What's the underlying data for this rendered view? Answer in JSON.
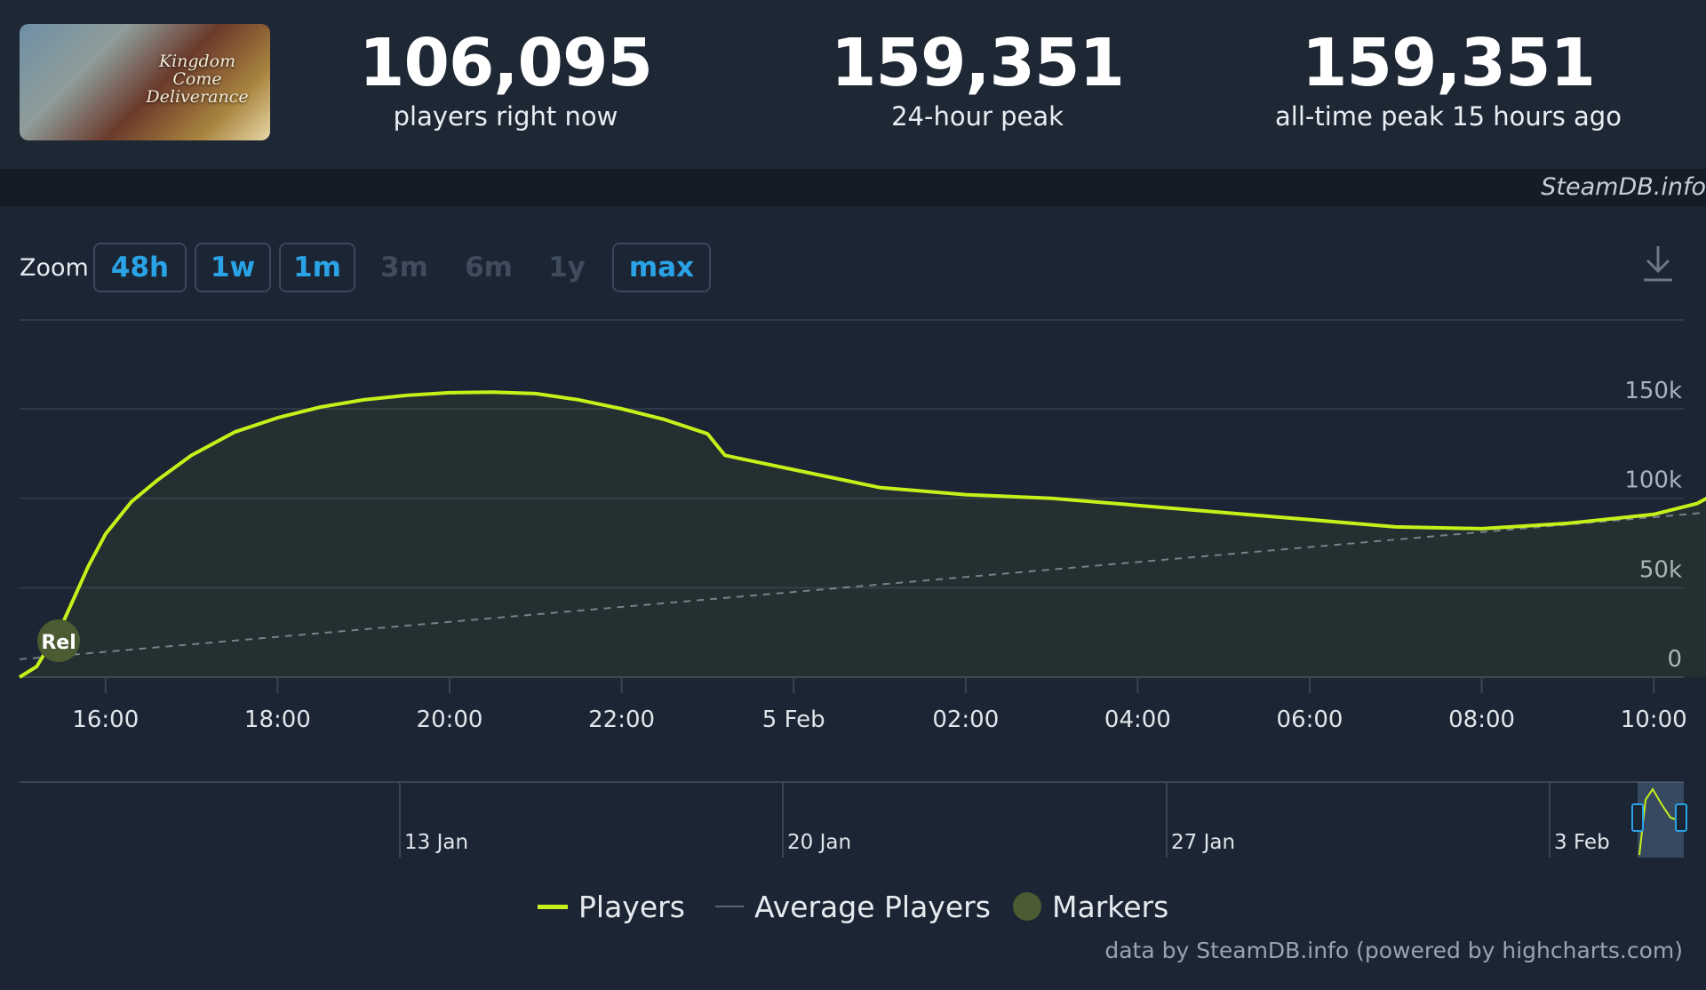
{
  "game": {
    "logo_line1": "Kingdom Come",
    "logo_line2": "Deliverance"
  },
  "stats": {
    "now_value": "106,095",
    "now_label": "players right now",
    "peak24_value": "159,351",
    "peak24_label": "24-hour peak",
    "alltime_value": "159,351",
    "alltime_label": "all-time peak 15 hours ago"
  },
  "brand": "SteamDB.info",
  "zoom": {
    "label": "Zoom",
    "buttons": [
      {
        "label": "48h",
        "enabled": true
      },
      {
        "label": "1w",
        "enabled": true
      },
      {
        "label": "1m",
        "enabled": true
      },
      {
        "label": "3m",
        "enabled": false
      },
      {
        "label": "6m",
        "enabled": false
      },
      {
        "label": "1y",
        "enabled": false
      },
      {
        "label": "max",
        "enabled": true
      }
    ]
  },
  "legend": {
    "players": "Players",
    "average": "Average Players",
    "markers": "Markers"
  },
  "credits": "data by SteamDB.info (powered by highcharts.com)",
  "colors": {
    "players_line": "#c6f01a",
    "average_line": "#9aa4ae",
    "marker": "#4b5c32",
    "accent": "#2aa3e6",
    "background": "#1b2533"
  },
  "chart_data": {
    "type": "line",
    "ylim": [
      0,
      150000
    ],
    "yticks": [
      0,
      50000,
      100000,
      150000
    ],
    "ytick_labels": [
      "0",
      "50k",
      "100k",
      "150k"
    ],
    "x_unit": "hours since 4 Feb 15:00",
    "xticks": [
      1,
      3,
      5,
      7,
      9,
      11,
      13,
      15,
      17,
      19
    ],
    "xtick_labels": [
      "16:00",
      "18:00",
      "20:00",
      "22:00",
      "5 Feb",
      "02:00",
      "04:00",
      "06:00",
      "08:00",
      "10:00"
    ],
    "series": [
      {
        "name": "Players",
        "x": [
          0,
          0.2,
          0.5,
          0.8,
          1.0,
          1.3,
          1.6,
          2.0,
          2.5,
          3.0,
          3.5,
          4.0,
          4.5,
          5.0,
          5.5,
          6.0,
          6.5,
          7.0,
          7.5,
          8.0,
          8.2,
          8.4,
          9.0,
          9.5,
          10.0,
          11.0,
          12.0,
          13.0,
          14.0,
          15.0,
          16.0,
          17.0,
          18.0,
          19.0,
          19.5,
          19.85
        ],
        "y": [
          0,
          6000,
          30000,
          62000,
          80000,
          98000,
          110000,
          124000,
          137000,
          145000,
          151000,
          155000,
          157500,
          159000,
          159351,
          158500,
          155000,
          150000,
          144000,
          136000,
          124000,
          122000,
          116000,
          111000,
          106000,
          102000,
          100000,
          96000,
          92000,
          88000,
          84000,
          83000,
          86000,
          91000,
          97000,
          106095
        ]
      },
      {
        "name": "Average Players",
        "x": [
          0,
          19.85
        ],
        "y": [
          10000,
          93000
        ],
        "style": "dashed"
      }
    ],
    "markers": [
      {
        "label": "Rel",
        "x": 0.3
      }
    ],
    "navigator": {
      "labels": [
        "13 Jan",
        "20 Jan",
        "27 Jan",
        "3 Feb"
      ]
    },
    "legend_position": "bottom-center",
    "grid": true
  }
}
